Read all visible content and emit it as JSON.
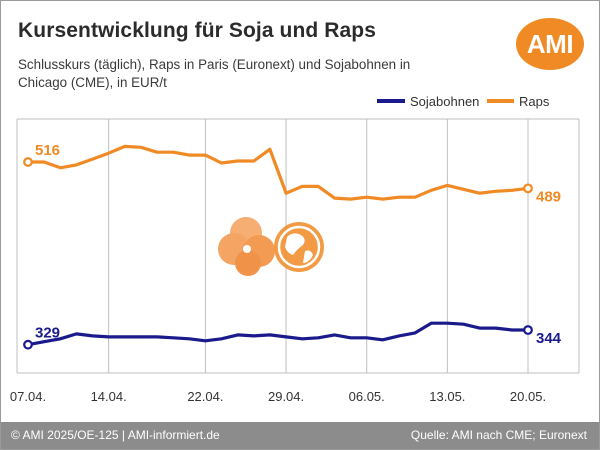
{
  "title": "Kursentwicklung für Soja und Raps",
  "subtitle": "Schlusskurs (täglich), Raps in Paris (Euronext) und Sojabohnen in Chicago (CME), in EUR/t",
  "logo_text": "AMI",
  "footer": {
    "left": "© AMI 2025/OE-125 | AMI-informiert.de",
    "right": "Quelle: AMI nach CME; Euronext"
  },
  "colors": {
    "soja": "#1a1a8c",
    "raps": "#f08a24",
    "grid": "#bfbfbf",
    "footer": "#8c8c8c"
  },
  "chart_data": {
    "type": "line",
    "title": "Kursentwicklung für Soja und Raps",
    "xlabel": "",
    "ylabel": "",
    "x_ticks": [
      "07.04.",
      "14.04.",
      "22.04.",
      "29.04.",
      "06.05.",
      "13.05.",
      "20.05."
    ],
    "x_dates": [
      "07.04.",
      "08.04.",
      "09.04.",
      "10.04.",
      "11.04.",
      "14.04.",
      "15.04.",
      "16.04.",
      "17.04.",
      "18.04.",
      "21.04.",
      "22.04.",
      "23.04.",
      "24.04.",
      "25.04.",
      "28.04.",
      "29.04.",
      "30.04.",
      "01.05.",
      "02.05.",
      "05.05.",
      "06.05.",
      "07.05.",
      "08.05.",
      "09.05.",
      "12.05.",
      "13.05.",
      "14.05.",
      "15.05.",
      "16.05.",
      "19.05.",
      "20.05."
    ],
    "ylim": [
      300,
      560
    ],
    "grid": true,
    "legend_position": "top-right",
    "series": [
      {
        "name": "Sojabohnen",
        "color": "#1a1a8c",
        "start_label": "329",
        "end_label": "344",
        "values": [
          329,
          332,
          335,
          340,
          338,
          337,
          337,
          337,
          337,
          336,
          335,
          333,
          335,
          339,
          338,
          339,
          337,
          335,
          336,
          339,
          336,
          336,
          334,
          338,
          341,
          351,
          351,
          350,
          346,
          346,
          344,
          344
        ]
      },
      {
        "name": "Raps",
        "color": "#f08a24",
        "start_label": "516",
        "end_label": "489",
        "values": [
          516,
          516,
          510,
          513,
          519,
          525,
          532,
          531,
          526,
          526,
          523,
          523,
          515,
          517,
          517,
          529,
          484,
          491,
          491,
          479,
          478,
          480,
          478,
          480,
          480,
          487,
          492,
          488,
          484,
          486,
          487,
          489
        ]
      }
    ]
  }
}
